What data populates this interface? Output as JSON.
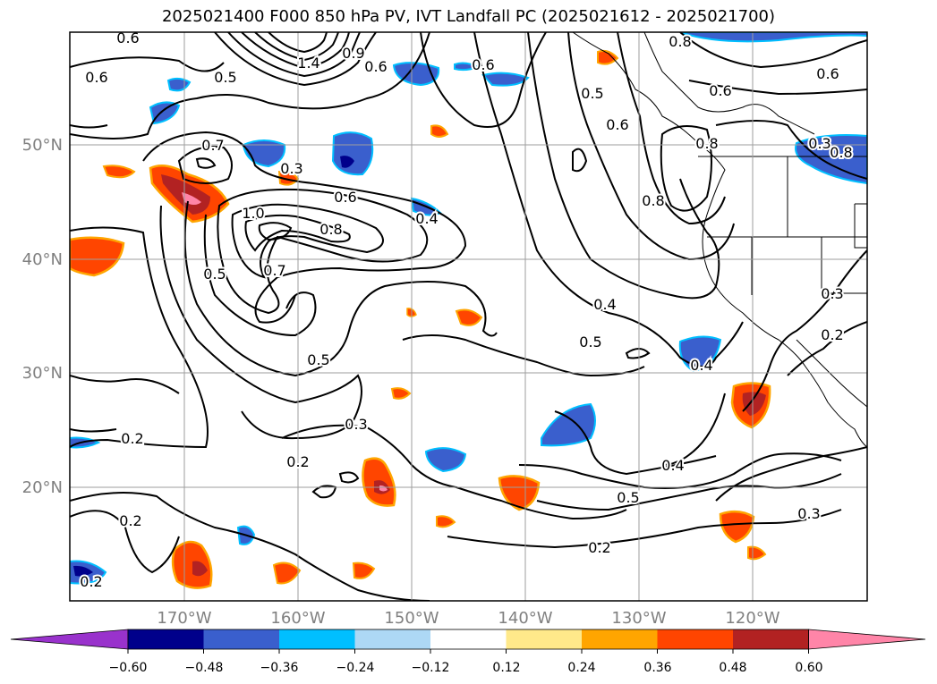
{
  "title": "2025021400 F000 850 hPa PV, IVT Landfall PC (2025021612 - 2025021700)",
  "map": {
    "lon_ticks": [
      "170°W",
      "160°W",
      "150°W",
      "140°W",
      "130°W",
      "120°W"
    ],
    "lat_ticks": [
      "50°N",
      "40°N",
      "30°N",
      "20°N"
    ],
    "grid": true,
    "contour_labels": [
      "0.6",
      "1.4",
      "0.9",
      "0.6",
      "0.8",
      "0.6",
      "0.6",
      "0.5",
      "0.6",
      "0.7",
      "0.3",
      "0.6",
      "0.4",
      "1.0",
      "0.8",
      "0.5",
      "0.7",
      "0.8",
      "0.4",
      "0.5",
      "0.4",
      "0.5",
      "0.3",
      "0.2",
      "0.3",
      "0.2",
      "0.2",
      "0.4",
      "0.5",
      "0.2",
      "0.3",
      "0.2",
      "0.3",
      "0.2",
      "0.8",
      "0.5",
      "0.6",
      "0.8",
      "0.6"
    ]
  },
  "colorbar": {
    "tick_labels": [
      "−0.60",
      "−0.48",
      "−0.36",
      "−0.24",
      "−0.12",
      "0.12",
      "0.24",
      "0.36",
      "0.48",
      "0.60"
    ],
    "colors": [
      "#9932cc",
      "#00008b",
      "#3a5fcd",
      "#00bfff",
      "#add8f5",
      "#ffffff",
      "#ffe98a",
      "#ffa500",
      "#ff4500",
      "#b22222",
      "#ff85a8"
    ]
  }
}
